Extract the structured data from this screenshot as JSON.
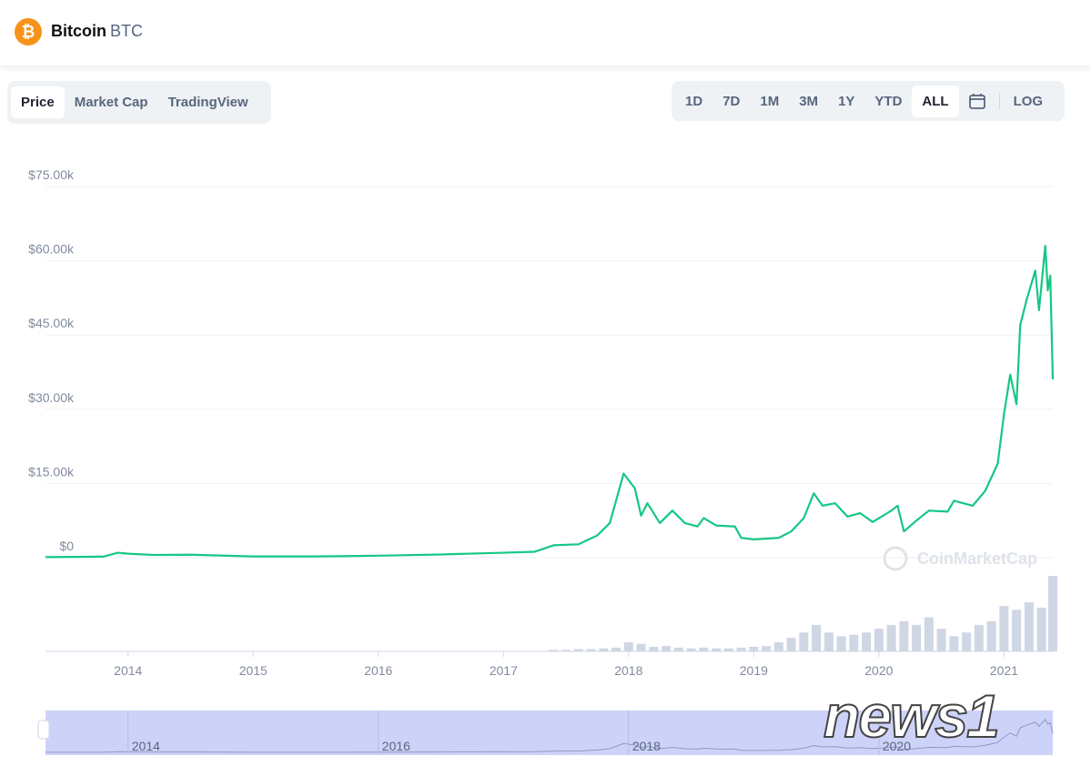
{
  "header": {
    "name": "Bitcoin",
    "symbol": "BTC"
  },
  "tabs": [
    "Price",
    "Market Cap",
    "TradingView"
  ],
  "ranges": [
    "1D",
    "7D",
    "1M",
    "3M",
    "1Y",
    "YTD",
    "ALL"
  ],
  "log_button": "LOG",
  "watermark": "CoinMarketCap",
  "overlay_logo": "news1",
  "chart_data": {
    "type": "line",
    "color": "#16c784",
    "x": [
      2013.34,
      2013.8,
      2013.92,
      2014.0,
      2014.2,
      2014.5,
      2015.0,
      2015.5,
      2016.0,
      2016.5,
      2017.0,
      2017.25,
      2017.4,
      2017.6,
      2017.75,
      2017.85,
      2017.96,
      2018.05,
      2018.1,
      2018.15,
      2018.25,
      2018.35,
      2018.45,
      2018.55,
      2018.6,
      2018.7,
      2018.85,
      2018.9,
      2019.0,
      2019.2,
      2019.3,
      2019.4,
      2019.48,
      2019.55,
      2019.65,
      2019.75,
      2019.85,
      2019.95,
      2020.1,
      2020.15,
      2020.2,
      2020.3,
      2020.4,
      2020.55,
      2020.6,
      2020.75,
      2020.85,
      2020.95,
      2021.0,
      2021.05,
      2021.1,
      2021.13,
      2021.18,
      2021.25,
      2021.28,
      2021.33,
      2021.35,
      2021.37,
      2021.39
    ],
    "values": [
      120,
      200,
      1000,
      800,
      550,
      600,
      250,
      250,
      400,
      650,
      1000,
      1200,
      2500,
      2700,
      4500,
      7000,
      17000,
      14000,
      8500,
      11000,
      7000,
      9500,
      7000,
      6300,
      8000,
      6500,
      6300,
      4000,
      3700,
      4000,
      5300,
      8000,
      13000,
      10500,
      11000,
      8300,
      9000,
      7200,
      9500,
      10500,
      5300,
      7500,
      9500,
      9300,
      11500,
      10500,
      13500,
      19000,
      29000,
      37000,
      31000,
      47000,
      52000,
      58000,
      50000,
      63000,
      54000,
      57000,
      36000
    ],
    "xlim": [
      2013.34,
      2021.39
    ],
    "xticks": [
      2014,
      2015,
      2016,
      2017,
      2018,
      2019,
      2020,
      2021
    ],
    "ylim": [
      0,
      75000
    ],
    "yticks": [
      {
        "value": 0,
        "label": "$0"
      },
      {
        "value": 15000,
        "label": "$15.00k"
      },
      {
        "value": 30000,
        "label": "$30.00k"
      },
      {
        "value": 45000,
        "label": "$45.00k"
      },
      {
        "value": 60000,
        "label": "$60.00k"
      },
      {
        "value": 75000,
        "label": "$75.00k"
      }
    ],
    "grid": true,
    "volume": {
      "color": "#cfd6e4",
      "y2lim": [
        0,
        100
      ],
      "x": [
        2017.4,
        2017.5,
        2017.6,
        2017.7,
        2017.8,
        2017.9,
        2018.0,
        2018.1,
        2018.2,
        2018.3,
        2018.4,
        2018.5,
        2018.6,
        2018.7,
        2018.8,
        2018.9,
        2019.0,
        2019.1,
        2019.2,
        2019.3,
        2019.4,
        2019.5,
        2019.6,
        2019.7,
        2019.8,
        2019.9,
        2020.0,
        2020.1,
        2020.2,
        2020.3,
        2020.4,
        2020.5,
        2020.6,
        2020.7,
        2020.8,
        2020.9,
        2021.0,
        2021.1,
        2021.2,
        2021.3,
        2021.39
      ],
      "values": [
        2,
        2,
        3,
        3,
        4,
        5,
        12,
        10,
        6,
        7,
        5,
        4,
        5,
        4,
        4,
        5,
        6,
        7,
        12,
        18,
        25,
        35,
        25,
        20,
        22,
        25,
        30,
        35,
        40,
        35,
        45,
        30,
        20,
        25,
        35,
        40,
        60,
        55,
        65,
        58,
        100
      ]
    },
    "navigator_ticks": [
      2014,
      2016,
      2018,
      2020
    ]
  }
}
